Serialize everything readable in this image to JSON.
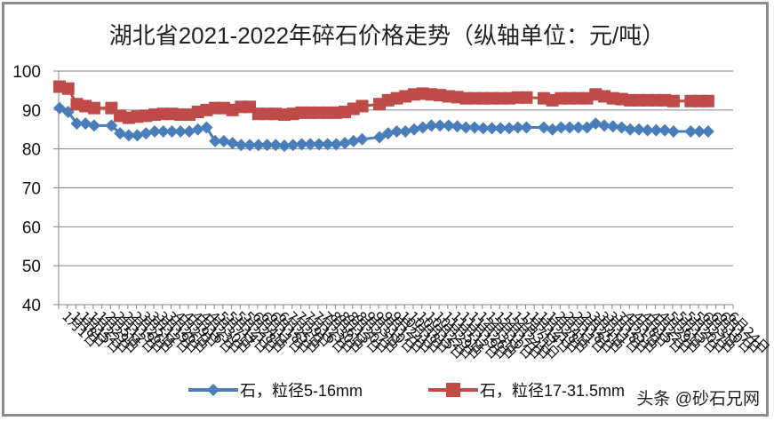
{
  "chart_data": {
    "type": "line",
    "title": "湖北省2021-2022年碎石价格走势（纵轴单位：元/吨）",
    "xlabel": "",
    "ylabel": "元/吨",
    "ylim": [
      40,
      100
    ],
    "yticks": [
      40,
      50,
      60,
      70,
      80,
      90,
      100
    ],
    "grid": true,
    "legend_position": "bottom",
    "x": [
      "1月1日",
      "1月8日",
      "1月15日",
      "1月22日",
      "1月29日",
      "2月5日",
      "2月12日",
      "2月19日",
      "2月26日",
      "3月5日",
      "3月12日",
      "3月19日",
      "3月26日",
      "4月2日",
      "4月9日",
      "4月16日",
      "4月23日",
      "4月30日",
      "5月7日",
      "5月14日",
      "5月21日",
      "5月28日",
      "6月4日",
      "6月11日",
      "6月18日",
      "6月25日",
      "7月2日",
      "7月9日",
      "7月16日",
      "7月23日",
      "7月30日",
      "8月6日",
      "8月13日",
      "8月20日",
      "8月27日",
      "9月3日",
      "9月10日",
      "9月17日",
      "9月24日",
      "10月1日",
      "10月8日",
      "10月15日",
      "10月22日",
      "10月29日",
      "11月5日",
      "11月12日",
      "11月19日",
      "11月26日",
      "12月3日",
      "12月10日",
      "12月17日",
      "12月24日",
      "12月31日",
      "1月7日",
      "1月14日",
      "1月21日",
      "1月28日",
      "2月4日",
      "2月11日",
      "2月18日",
      "2月25日",
      "3月4日",
      "3月11日",
      "3月18日",
      "3月25日",
      "4月1日",
      "4月8日",
      "4月15日",
      "4月22日",
      "4月29日",
      "5月6日",
      "5月13日",
      "5月20日",
      "5月27日",
      "6月3日",
      "6月10日",
      "6月17日",
      "6月24日"
    ],
    "series": [
      {
        "name": "石，粒径5-16mm",
        "color": "#4a7ebb",
        "marker": "diamond",
        "values": [
          90.5,
          89.5,
          86.5,
          86.5,
          86,
          null,
          86,
          84,
          83.5,
          83.5,
          84,
          84.5,
          84.5,
          84.5,
          84.5,
          84.5,
          85,
          85.5,
          82,
          82,
          81.5,
          81,
          81,
          81,
          81,
          81,
          80.8,
          81,
          81.2,
          81.2,
          81.2,
          81.2,
          81.2,
          81.5,
          82,
          82.5,
          null,
          83,
          84,
          84.5,
          84.5,
          85,
          85.5,
          86,
          86,
          86,
          85.8,
          85.5,
          85.5,
          85.3,
          85.3,
          85.3,
          85.3,
          85.5,
          85.5,
          null,
          85.5,
          85,
          85.5,
          85.5,
          85.5,
          85.5,
          86.5,
          86,
          85.8,
          85.5,
          85,
          85,
          84.8,
          84.8,
          84.8,
          84.5,
          null,
          84.5,
          84.5,
          84.5,
          null,
          null
        ]
      },
      {
        "name": "石，粒径17-31.5mm",
        "color": "#be4b48",
        "marker": "square",
        "values": [
          96,
          95.5,
          91.5,
          91,
          90.5,
          null,
          90.5,
          88.5,
          88,
          88.3,
          88.5,
          88.8,
          89,
          89,
          88.8,
          88.8,
          89.5,
          90,
          90.5,
          90.5,
          90,
          90.8,
          90.8,
          89,
          89,
          89,
          88.8,
          89,
          89.3,
          89.3,
          89.3,
          89.3,
          89.3,
          89.5,
          90.3,
          91,
          null,
          91.5,
          92.5,
          93,
          93.5,
          94,
          94.2,
          94,
          93.8,
          93.5,
          93.3,
          93,
          93,
          93,
          93,
          93,
          93,
          93.2,
          93.2,
          null,
          93,
          92.5,
          93,
          93,
          93,
          93,
          94,
          93.5,
          93,
          92.8,
          92.5,
          92.5,
          92.5,
          92.5,
          92.5,
          92.3,
          null,
          92.3,
          92.3,
          92.3,
          null,
          null
        ]
      }
    ]
  },
  "header": {
    "title": "湖北省2021-2022年碎石价格走势（纵轴单位：元/吨）"
  },
  "legend": {
    "items": [
      {
        "label": "石，粒径5-16mm",
        "color": "#4a7ebb",
        "icon": "diamond-marker-icon"
      },
      {
        "label": "石，粒径17-31.5mm",
        "color": "#be4b48",
        "icon": "square-marker-icon"
      }
    ]
  },
  "watermark": "头条 @砂石兄网",
  "colors": {
    "gridline": "#868686",
    "axis": "#868686",
    "frame": "#8c8c8c"
  }
}
